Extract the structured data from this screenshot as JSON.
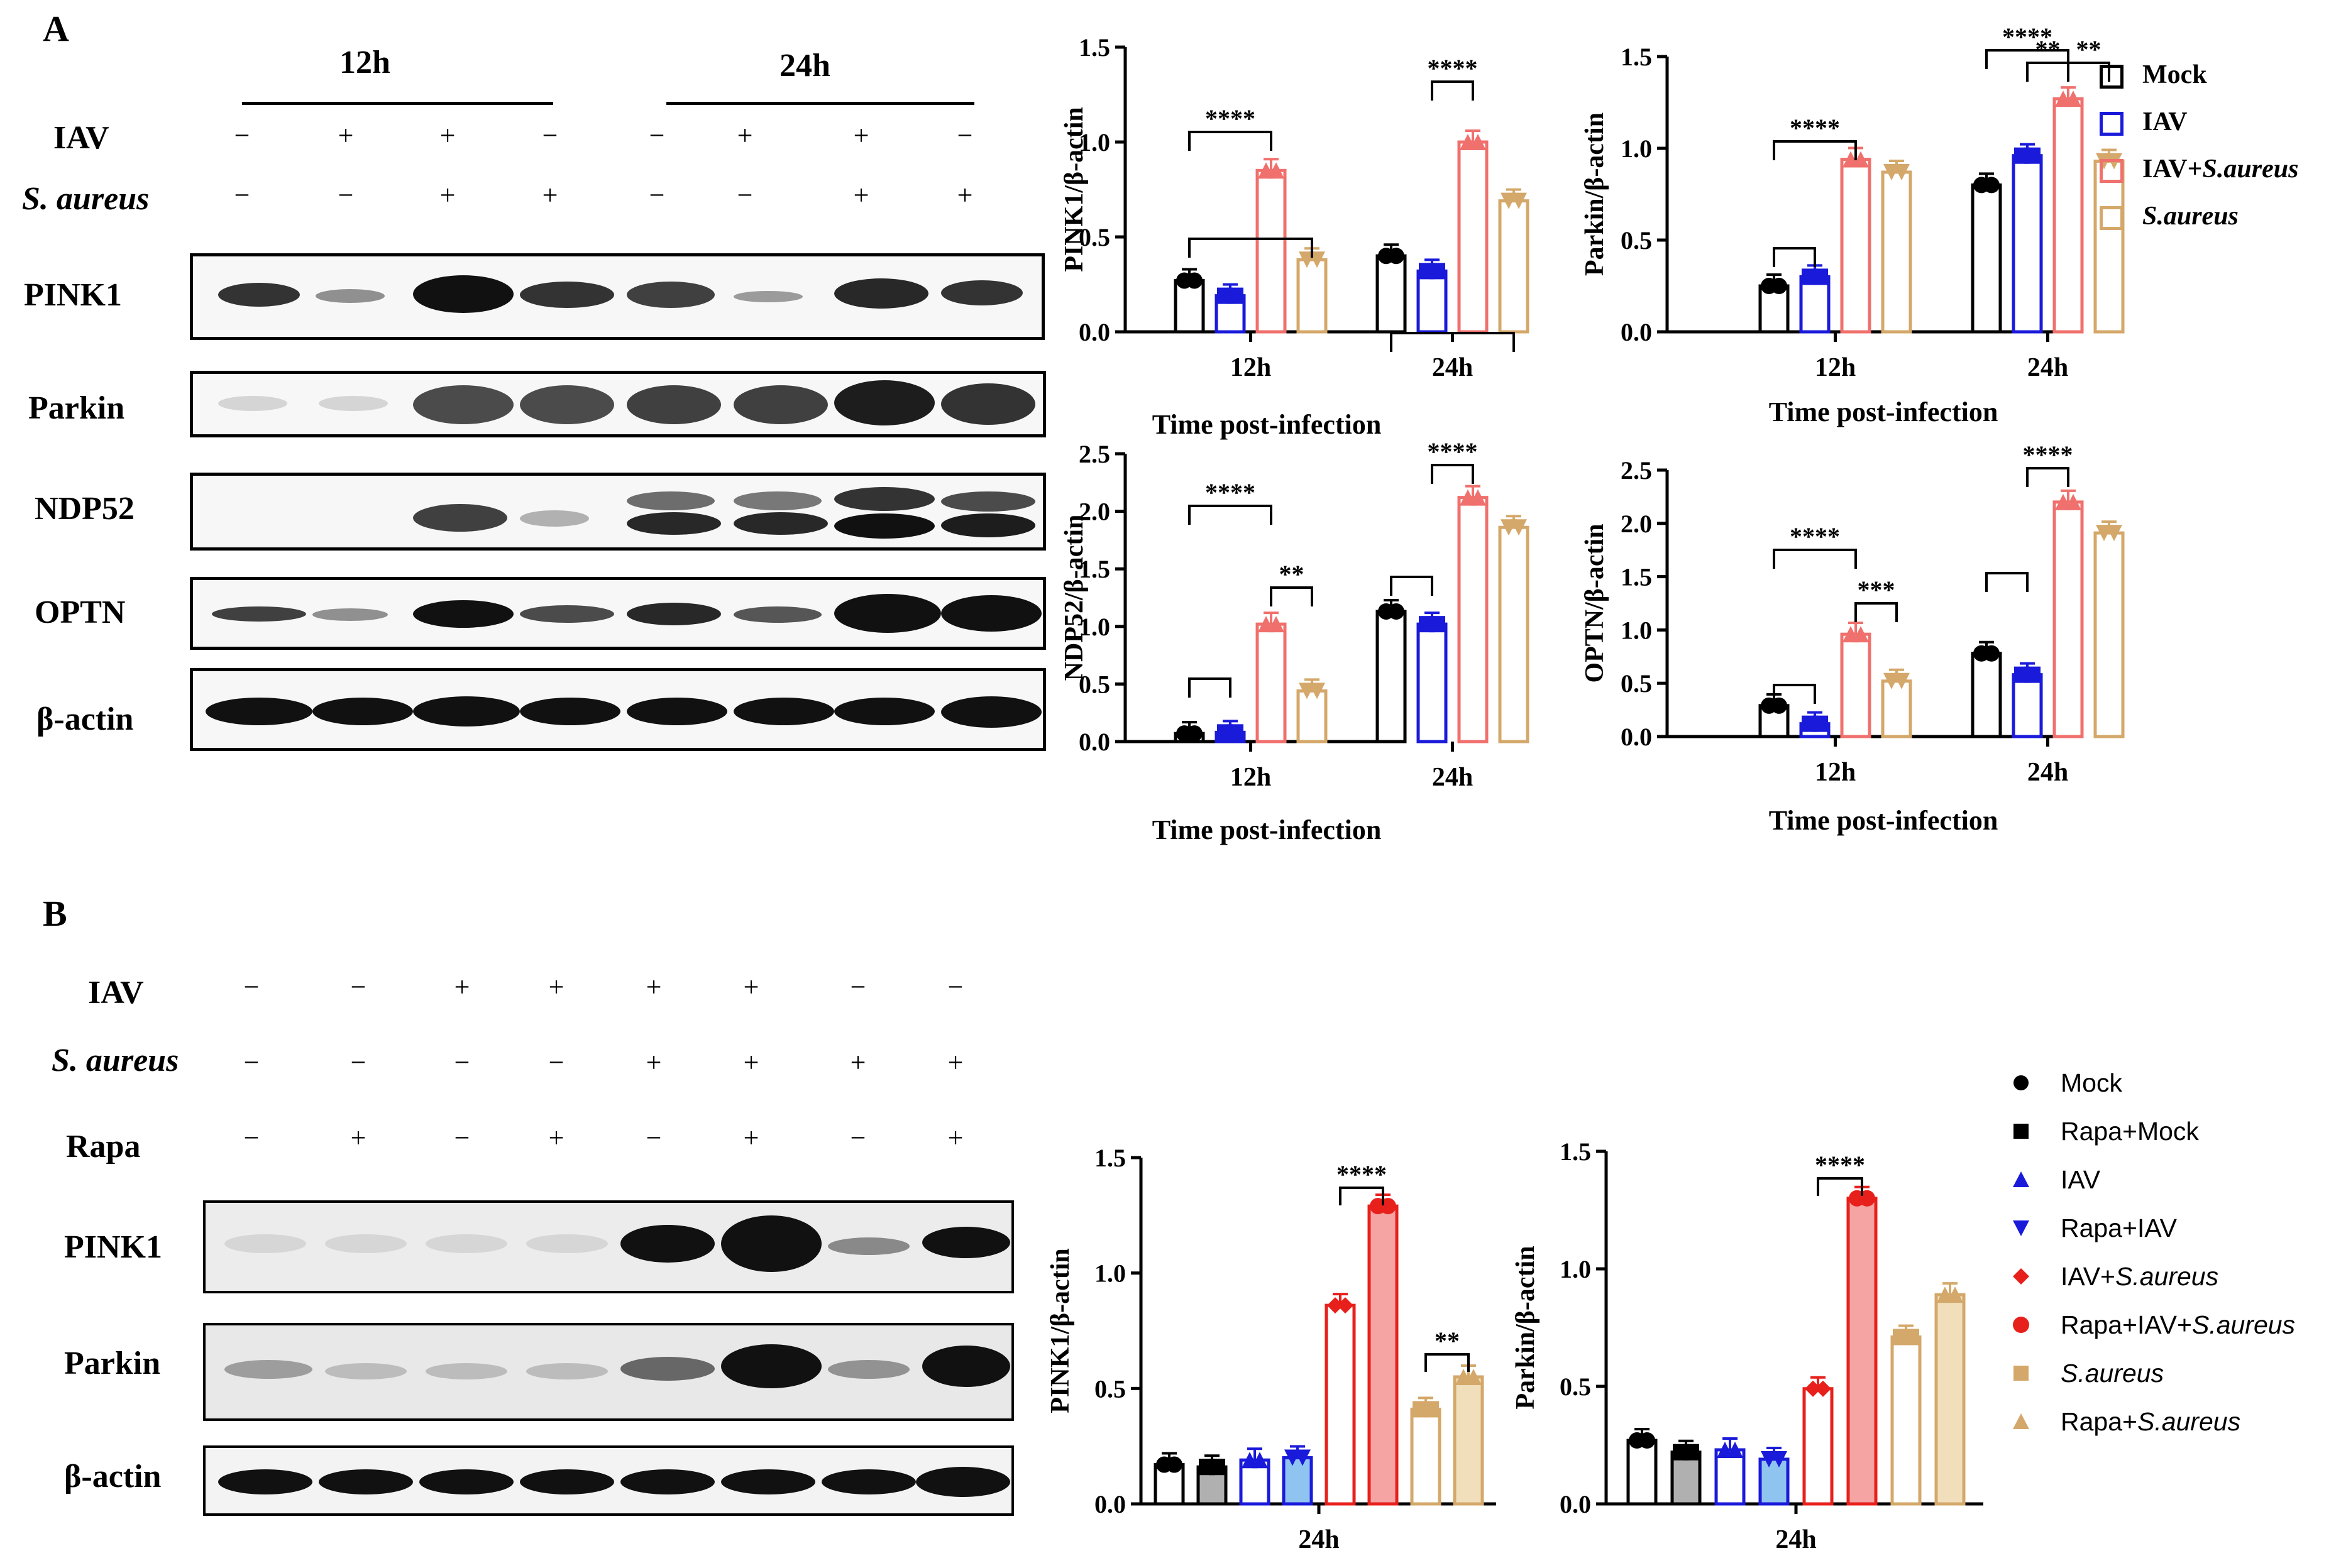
{
  "panels": {
    "a": "A",
    "b": "B"
  },
  "blotA": {
    "time_labels": [
      "12h",
      "24h"
    ],
    "row_labels": {
      "iav": "IAV",
      "sa": "S. aureus"
    },
    "iav_signs": [
      "−",
      "+",
      "+",
      "−",
      "−",
      "+",
      "+",
      "−"
    ],
    "sa_signs": [
      "−",
      "−",
      "+",
      "+",
      "−",
      "−",
      "+",
      "+"
    ],
    "proteins": [
      "PINK1",
      "Parkin",
      "NDP52",
      "OPTN",
      "β-actin"
    ]
  },
  "blotB": {
    "row_labels": {
      "iav": "IAV",
      "sa": "S. aureus",
      "rapa": "Rapa"
    },
    "iav_signs": [
      "−",
      "−",
      "+",
      "+",
      "+",
      "+",
      "−",
      "−"
    ],
    "sa_signs": [
      "−",
      "−",
      "−",
      "−",
      "+",
      "+",
      "+",
      "+"
    ],
    "rapa_signs": [
      "−",
      "+",
      "−",
      "+",
      "−",
      "+",
      "−",
      "+"
    ],
    "proteins": [
      "PINK1",
      "Parkin",
      "β-actin"
    ]
  },
  "legendA": {
    "items": [
      "Mock",
      "IAV",
      "IAV+",
      "S.aureus"
    ],
    "italic_suffix": "S.aureus",
    "colors": {
      "mock": "#000000",
      "iav": "#1a1adb",
      "iav_sa": "#f0706d",
      "sa": "#d4a86a"
    }
  },
  "legendB": {
    "items": [
      "Mock",
      "Rapa+Mock",
      "IAV",
      "Rapa+IAV",
      "IAV+",
      "Rapa+IAV+",
      "S.aureus",
      "Rapa+"
    ],
    "italic": "S.aureus",
    "colors": [
      "#000000",
      "#000000",
      "#1a1adb",
      "#1a1adb",
      "#e8201c",
      "#e8201c",
      "#d4a86a",
      "#d4a86a"
    ]
  },
  "chart_data": [
    {
      "type": "bar",
      "id": "A-PINK1",
      "categories": [
        "12h",
        "24h"
      ],
      "series": [
        {
          "name": "Mock",
          "values": [
            0.27,
            0.4
          ]
        },
        {
          "name": "IAV",
          "values": [
            0.19,
            0.32
          ]
        },
        {
          "name": "IAV+S.aureus",
          "values": [
            0.85,
            1.0
          ]
        },
        {
          "name": "S.aureus",
          "values": [
            0.38,
            0.69
          ]
        }
      ],
      "xlabel": "Time post-infection",
      "ylabel": "PINK1/β-actin",
      "ylim": [
        0,
        1.5
      ],
      "yticks": [
        "0.0",
        "0.5",
        "1.0",
        "1.5"
      ],
      "sig": [
        "****",
        "****"
      ]
    },
    {
      "type": "bar",
      "id": "A-Parkin",
      "categories": [
        "12h",
        "24h"
      ],
      "series": [
        {
          "name": "Mock",
          "values": [
            0.25,
            0.8
          ]
        },
        {
          "name": "IAV",
          "values": [
            0.3,
            0.96
          ]
        },
        {
          "name": "IAV+S.aureus",
          "values": [
            0.94,
            1.27
          ]
        },
        {
          "name": "S.aureus",
          "values": [
            0.87,
            0.93
          ]
        }
      ],
      "xlabel": "Time post-infection",
      "ylabel": "Parkin/β-actin",
      "ylim": [
        0,
        1.5
      ],
      "yticks": [
        "0.0",
        "0.5",
        "1.0",
        "1.5"
      ],
      "sig": [
        "****",
        "****",
        "**",
        "**"
      ]
    },
    {
      "type": "bar",
      "id": "A-NDP52",
      "categories": [
        "12h",
        "24h"
      ],
      "series": [
        {
          "name": "Mock",
          "values": [
            0.07,
            1.13
          ]
        },
        {
          "name": "IAV",
          "values": [
            0.08,
            1.02
          ]
        },
        {
          "name": "IAV+S.aureus",
          "values": [
            1.02,
            2.12
          ]
        },
        {
          "name": "S.aureus",
          "values": [
            0.44,
            1.86
          ]
        }
      ],
      "xlabel": "Time post-infection",
      "ylabel": "NDP52/β-actin",
      "ylim": [
        0,
        2.5
      ],
      "yticks": [
        "0.0",
        "0.5",
        "1.0",
        "1.5",
        "2.0",
        "2.5"
      ],
      "sig": [
        "****",
        "**",
        "****"
      ]
    },
    {
      "type": "bar",
      "id": "A-OPTN",
      "categories": [
        "12h",
        "24h"
      ],
      "series": [
        {
          "name": "Mock",
          "values": [
            0.29,
            0.78
          ]
        },
        {
          "name": "IAV",
          "values": [
            0.12,
            0.58
          ]
        },
        {
          "name": "IAV+S.aureus",
          "values": [
            0.96,
            2.2
          ]
        },
        {
          "name": "S.aureus",
          "values": [
            0.52,
            1.91
          ]
        }
      ],
      "xlabel": "Time post-infection",
      "ylabel": "OPTN/β-actin",
      "ylim": [
        0,
        2.5
      ],
      "yticks": [
        "0.0",
        "0.5",
        "1.0",
        "1.5",
        "2.0",
        "2.5"
      ],
      "sig": [
        "****",
        "***",
        "****"
      ]
    },
    {
      "type": "bar",
      "id": "B-PINK1",
      "categories": [
        "24h"
      ],
      "series": [
        {
          "name": "Mock",
          "values": [
            0.17
          ]
        },
        {
          "name": "Rapa+Mock",
          "values": [
            0.16
          ]
        },
        {
          "name": "IAV",
          "values": [
            0.19
          ]
        },
        {
          "name": "Rapa+IAV",
          "values": [
            0.2
          ]
        },
        {
          "name": "IAV+S.aureus",
          "values": [
            0.86
          ]
        },
        {
          "name": "Rapa+IAV+S.aureus",
          "values": [
            1.29
          ]
        },
        {
          "name": "S.aureus",
          "values": [
            0.41
          ]
        },
        {
          "name": "Rapa+S.aureus",
          "values": [
            0.55
          ]
        }
      ],
      "ylabel": "PINK1/β-actin",
      "ylim": [
        0,
        1.5
      ],
      "yticks": [
        "0.0",
        "0.5",
        "1.0",
        "1.5"
      ],
      "sig": [
        "****",
        "**"
      ]
    },
    {
      "type": "bar",
      "id": "B-Parkin",
      "categories": [
        "24h"
      ],
      "series": [
        {
          "name": "Mock",
          "values": [
            0.27
          ]
        },
        {
          "name": "Rapa+Mock",
          "values": [
            0.22
          ]
        },
        {
          "name": "IAV",
          "values": [
            0.23
          ]
        },
        {
          "name": "Rapa+IAV",
          "values": [
            0.19
          ]
        },
        {
          "name": "IAV+S.aureus",
          "values": [
            0.49
          ]
        },
        {
          "name": "Rapa+IAV+S.aureus",
          "values": [
            1.3
          ]
        },
        {
          "name": "S.aureus",
          "values": [
            0.71
          ]
        },
        {
          "name": "Rapa+S.aureus",
          "values": [
            0.89
          ]
        }
      ],
      "ylabel": "Parkin/β-actin",
      "ylim": [
        0,
        1.5
      ],
      "yticks": [
        "0.0",
        "0.5",
        "1.0",
        "1.5"
      ],
      "sig": [
        "****"
      ]
    }
  ]
}
